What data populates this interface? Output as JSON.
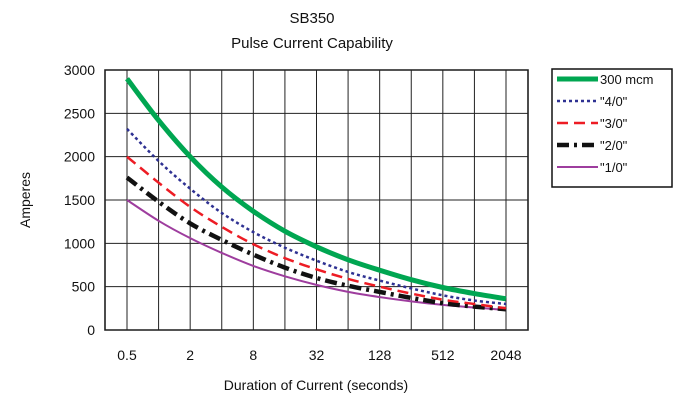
{
  "chart_data": {
    "type": "line",
    "title": "SB350",
    "subtitle": "Pulse Current Capability",
    "xlabel": "Duration of Current (seconds)",
    "ylabel": "Amperes",
    "x_scale": "log2",
    "xlim": [
      0.5,
      2048
    ],
    "ylim": [
      0,
      3000
    ],
    "x_ticks": [
      0.5,
      2,
      8,
      32,
      128,
      512,
      2048
    ],
    "x_tick_labels": [
      "0.5",
      "2",
      "8",
      "32",
      "128",
      "512",
      "2048"
    ],
    "y_ticks": [
      0,
      500,
      1000,
      1500,
      2000,
      2500,
      3000
    ],
    "y_tick_labels": [
      "0",
      "500",
      "1000",
      "1500",
      "2000",
      "2500",
      "3000"
    ],
    "grid": true,
    "legend_position": "right",
    "x": [
      0.5,
      1,
      2,
      4,
      8,
      16,
      32,
      64,
      128,
      256,
      512,
      1024,
      2048
    ],
    "series": [
      {
        "name": "300 mcm",
        "color": "#00a651",
        "dash": "solid",
        "width": 5,
        "values": [
          2900,
          2420,
          2000,
          1650,
          1370,
          1140,
          960,
          810,
          690,
          580,
          490,
          420,
          360
        ]
      },
      {
        "name": "\"4/0\"",
        "color": "#2e3192",
        "dash": "dot",
        "width": 2.5,
        "values": [
          2320,
          1950,
          1630,
          1350,
          1130,
          950,
          800,
          670,
          570,
          480,
          400,
          340,
          300
        ]
      },
      {
        "name": "\"3/0\"",
        "color": "#ed1c24",
        "dash": "dash",
        "width": 2.5,
        "values": [
          2000,
          1700,
          1420,
          1190,
          990,
          830,
          700,
          590,
          500,
          420,
          350,
          300,
          250
        ]
      },
      {
        "name": "\"2/0\"",
        "color": "#111111",
        "dash": "dashdot",
        "width": 4.5,
        "values": [
          1760,
          1480,
          1230,
          1040,
          870,
          720,
          600,
          510,
          440,
          370,
          310,
          270,
          240
        ]
      },
      {
        "name": "\"1/0\"",
        "color": "#9e3d9e",
        "dash": "solid",
        "width": 2,
        "values": [
          1500,
          1260,
          1060,
          890,
          740,
          620,
          520,
          440,
          380,
          330,
          290,
          260,
          230
        ]
      }
    ]
  }
}
